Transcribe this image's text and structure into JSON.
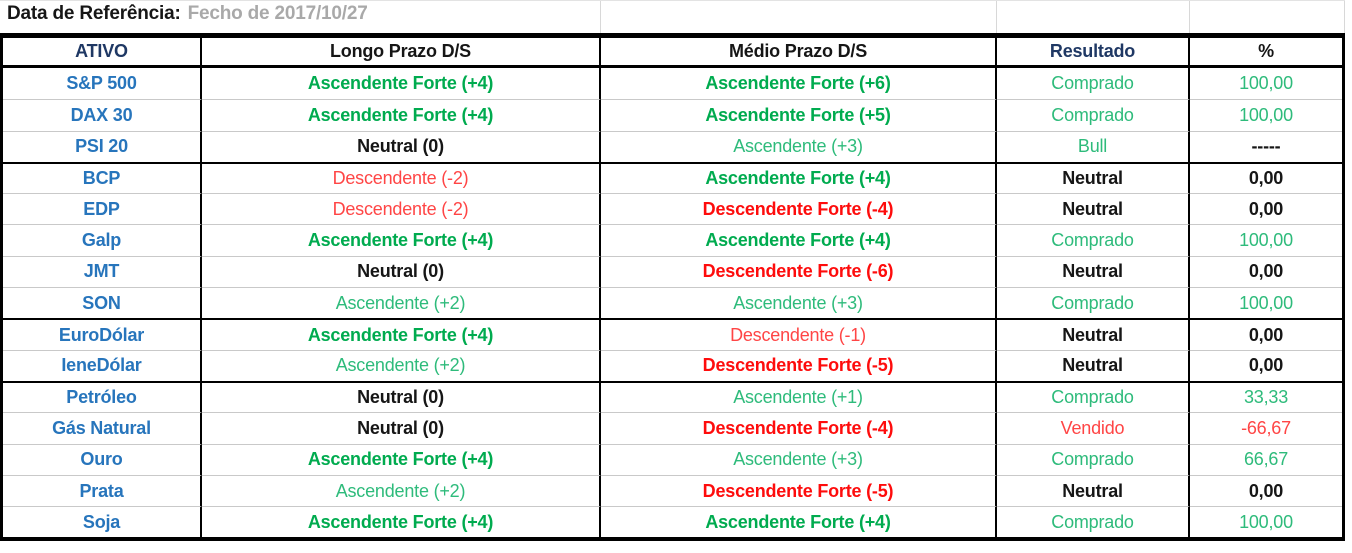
{
  "title_row": {
    "label": "Data de Referência:",
    "value": "Fecho de 2017/10/27"
  },
  "table": {
    "columns": [
      "ATIVO",
      "Longo Prazo D/S",
      "Médio Prazo D/S",
      "Resultado",
      "%"
    ],
    "rows": [
      {
        "separator_above": false,
        "cells": [
          {
            "text": "S&P 500",
            "style": "blue"
          },
          {
            "text": "Ascendente Forte (+4)",
            "style": "gs"
          },
          {
            "text": "Ascendente Forte (+6)",
            "style": "gs"
          },
          {
            "text": "Comprado",
            "style": "g"
          },
          {
            "text": "100,00",
            "style": "g"
          }
        ]
      },
      {
        "separator_above": false,
        "cells": [
          {
            "text": "DAX 30",
            "style": "blue"
          },
          {
            "text": "Ascendente Forte (+4)",
            "style": "gs"
          },
          {
            "text": "Ascendente Forte (+5)",
            "style": "gs"
          },
          {
            "text": "Comprado",
            "style": "g"
          },
          {
            "text": "100,00",
            "style": "g"
          }
        ]
      },
      {
        "separator_above": false,
        "cells": [
          {
            "text": "PSI 20",
            "style": "blue"
          },
          {
            "text": "Neutral (0)",
            "style": "k"
          },
          {
            "text": "Ascendente (+3)",
            "style": "g"
          },
          {
            "text": "Bull",
            "style": "g"
          },
          {
            "text": "-----",
            "style": "k"
          }
        ]
      },
      {
        "separator_above": true,
        "cells": [
          {
            "text": "BCP",
            "style": "blue"
          },
          {
            "text": "Descendente (-2)",
            "style": "r"
          },
          {
            "text": "Ascendente Forte (+4)",
            "style": "gs"
          },
          {
            "text": "Neutral",
            "style": "k"
          },
          {
            "text": "0,00",
            "style": "k"
          }
        ]
      },
      {
        "separator_above": false,
        "cells": [
          {
            "text": "EDP",
            "style": "blue"
          },
          {
            "text": "Descendente (-2)",
            "style": "r"
          },
          {
            "text": "Descendente Forte (-4)",
            "style": "rs"
          },
          {
            "text": "Neutral",
            "style": "k"
          },
          {
            "text": "0,00",
            "style": "k"
          }
        ]
      },
      {
        "separator_above": false,
        "cells": [
          {
            "text": "Galp",
            "style": "blue"
          },
          {
            "text": "Ascendente Forte (+4)",
            "style": "gs"
          },
          {
            "text": "Ascendente Forte (+4)",
            "style": "gs"
          },
          {
            "text": "Comprado",
            "style": "g"
          },
          {
            "text": "100,00",
            "style": "g"
          }
        ]
      },
      {
        "separator_above": false,
        "cells": [
          {
            "text": "JMT",
            "style": "blue"
          },
          {
            "text": "Neutral (0)",
            "style": "k"
          },
          {
            "text": "Descendente Forte (-6)",
            "style": "rs"
          },
          {
            "text": "Neutral",
            "style": "k"
          },
          {
            "text": "0,00",
            "style": "k"
          }
        ]
      },
      {
        "separator_above": false,
        "cells": [
          {
            "text": "SON",
            "style": "blue"
          },
          {
            "text": "Ascendente (+2)",
            "style": "g"
          },
          {
            "text": "Ascendente (+3)",
            "style": "g"
          },
          {
            "text": "Comprado",
            "style": "g"
          },
          {
            "text": "100,00",
            "style": "g"
          }
        ]
      },
      {
        "separator_above": true,
        "cells": [
          {
            "text": "EuroDólar",
            "style": "blue"
          },
          {
            "text": "Ascendente Forte (+4)",
            "style": "gs"
          },
          {
            "text": "Descendente (-1)",
            "style": "r"
          },
          {
            "text": "Neutral",
            "style": "k"
          },
          {
            "text": "0,00",
            "style": "k"
          }
        ]
      },
      {
        "separator_above": false,
        "cells": [
          {
            "text": "IeneDólar",
            "style": "blue"
          },
          {
            "text": "Ascendente (+2)",
            "style": "g"
          },
          {
            "text": "Descendente Forte (-5)",
            "style": "rs"
          },
          {
            "text": "Neutral",
            "style": "k"
          },
          {
            "text": "0,00",
            "style": "k"
          }
        ]
      },
      {
        "separator_above": true,
        "cells": [
          {
            "text": "Petróleo",
            "style": "blue"
          },
          {
            "text": "Neutral (0)",
            "style": "k"
          },
          {
            "text": "Ascendente (+1)",
            "style": "g"
          },
          {
            "text": "Comprado",
            "style": "g"
          },
          {
            "text": "33,33",
            "style": "g"
          }
        ]
      },
      {
        "separator_above": false,
        "cells": [
          {
            "text": "Gás Natural",
            "style": "blue"
          },
          {
            "text": "Neutral (0)",
            "style": "k"
          },
          {
            "text": "Descendente Forte (-4)",
            "style": "rs"
          },
          {
            "text": "Vendido",
            "style": "r"
          },
          {
            "text": "-66,67",
            "style": "r"
          }
        ]
      },
      {
        "separator_above": false,
        "cells": [
          {
            "text": "Ouro",
            "style": "blue"
          },
          {
            "text": "Ascendente Forte (+4)",
            "style": "gs"
          },
          {
            "text": "Ascendente (+3)",
            "style": "g"
          },
          {
            "text": "Comprado",
            "style": "g"
          },
          {
            "text": "66,67",
            "style": "g"
          }
        ]
      },
      {
        "separator_above": false,
        "cells": [
          {
            "text": "Prata",
            "style": "blue"
          },
          {
            "text": "Ascendente (+2)",
            "style": "g"
          },
          {
            "text": "Descendente Forte (-5)",
            "style": "rs"
          },
          {
            "text": "Neutral",
            "style": "k"
          },
          {
            "text": "0,00",
            "style": "k"
          }
        ]
      },
      {
        "separator_above": false,
        "cells": [
          {
            "text": "Soja",
            "style": "blue"
          },
          {
            "text": "Ascendente Forte (+4)",
            "style": "gs"
          },
          {
            "text": "Ascendente Forte (+4)",
            "style": "gs"
          },
          {
            "text": "Comprado",
            "style": "g"
          },
          {
            "text": "100,00",
            "style": "g"
          }
        ]
      }
    ]
  },
  "colors": {
    "asset_blue": "#2775BC",
    "header_navy": "#1F3864",
    "green_strong": "#00AB4F",
    "green": "#2EBB7B",
    "red_strong": "#FE0C0C",
    "red": "#FF4545",
    "black_text": "#161616",
    "muted_gray": "#A9A9A9",
    "grid_gray": "#C9C9C9",
    "border_black": "#000000"
  }
}
